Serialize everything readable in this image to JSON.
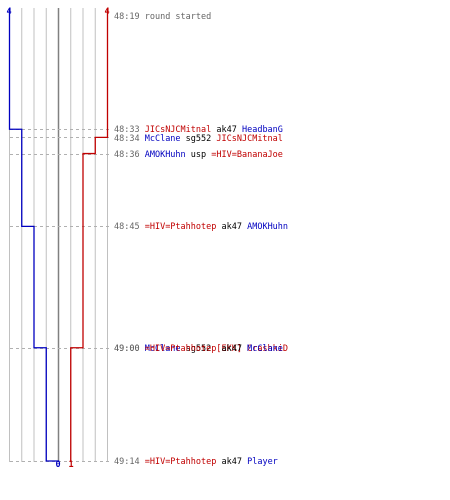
{
  "colors": {
    "blue": "#0000c0",
    "red": "#c00000",
    "time": "#666666",
    "grid": "#c0c0c0",
    "zero": "#808080",
    "text": "#000000"
  },
  "chart_data": {
    "type": "line",
    "title": "",
    "scores": {
      "blue_start": "4",
      "red_start": "4",
      "blue_end": "0",
      "red_end": "1"
    },
    "series": [
      {
        "side": "blue",
        "color": "#0000c0",
        "points": [
          {
            "t": "48:19",
            "v": 4
          },
          {
            "t": "48:33",
            "v": 3
          },
          {
            "t": "48:45",
            "v": 2
          },
          {
            "t": "49:00",
            "v": 1
          },
          {
            "t": "49:14",
            "v": 0
          }
        ]
      },
      {
        "side": "red",
        "color": "#c00000",
        "points": [
          {
            "t": "48:19",
            "v": 4
          },
          {
            "t": "48:34",
            "v": 3
          },
          {
            "t": "48:36",
            "v": 2
          },
          {
            "t": "49:00",
            "v": 1
          }
        ]
      }
    ],
    "ylim": [
      -4,
      4
    ],
    "events": [
      {
        "time": "48:19",
        "parts": [
          {
            "text": "round started",
            "c": "time"
          }
        ]
      },
      {
        "time": "48:33",
        "parts": [
          {
            "text": "JICsNJCMitnal",
            "c": "red"
          },
          {
            "text": " ak47 ",
            "c": "text"
          },
          {
            "text": "HeadbanG",
            "c": "blue"
          }
        ]
      },
      {
        "time": "48:34",
        "parts": [
          {
            "text": "McClane",
            "c": "blue"
          },
          {
            "text": " sg552 ",
            "c": "text"
          },
          {
            "text": "JICsNJCMitnal",
            "c": "red"
          }
        ]
      },
      {
        "time": "48:36",
        "parts": [
          {
            "text": "AMOKHuhn",
            "c": "blue"
          },
          {
            "text": " usp ",
            "c": "text"
          },
          {
            "text": "=HIV=BananaJoe",
            "c": "red"
          }
        ]
      },
      {
        "time": "48:45",
        "parts": [
          {
            "text": "=HIV=Ptahhotep",
            "c": "red"
          },
          {
            "text": " ak47 ",
            "c": "text"
          },
          {
            "text": "AMOKHuhn",
            "c": "blue"
          }
        ]
      },
      {
        "time": "49:00",
        "parts": [
          {
            "text": "McClane",
            "c": "blue"
          },
          {
            "text": " sg552 ",
            "c": "text"
          },
          {
            "text": "[EKK] CrashkiD",
            "c": "red"
          }
        ]
      },
      {
        "time": "49:00",
        "parts": [
          {
            "text": "=HIV=Ptahhotep",
            "c": "red"
          },
          {
            "text": " ak47 ",
            "c": "text"
          },
          {
            "text": "McClane",
            "c": "blue"
          }
        ]
      },
      {
        "time": "49:14",
        "parts": [
          {
            "text": "=HIV=Ptahhotep",
            "c": "red"
          },
          {
            "text": " ak47 ",
            "c": "text"
          },
          {
            "text": "Player",
            "c": "blue"
          }
        ]
      }
    ]
  }
}
